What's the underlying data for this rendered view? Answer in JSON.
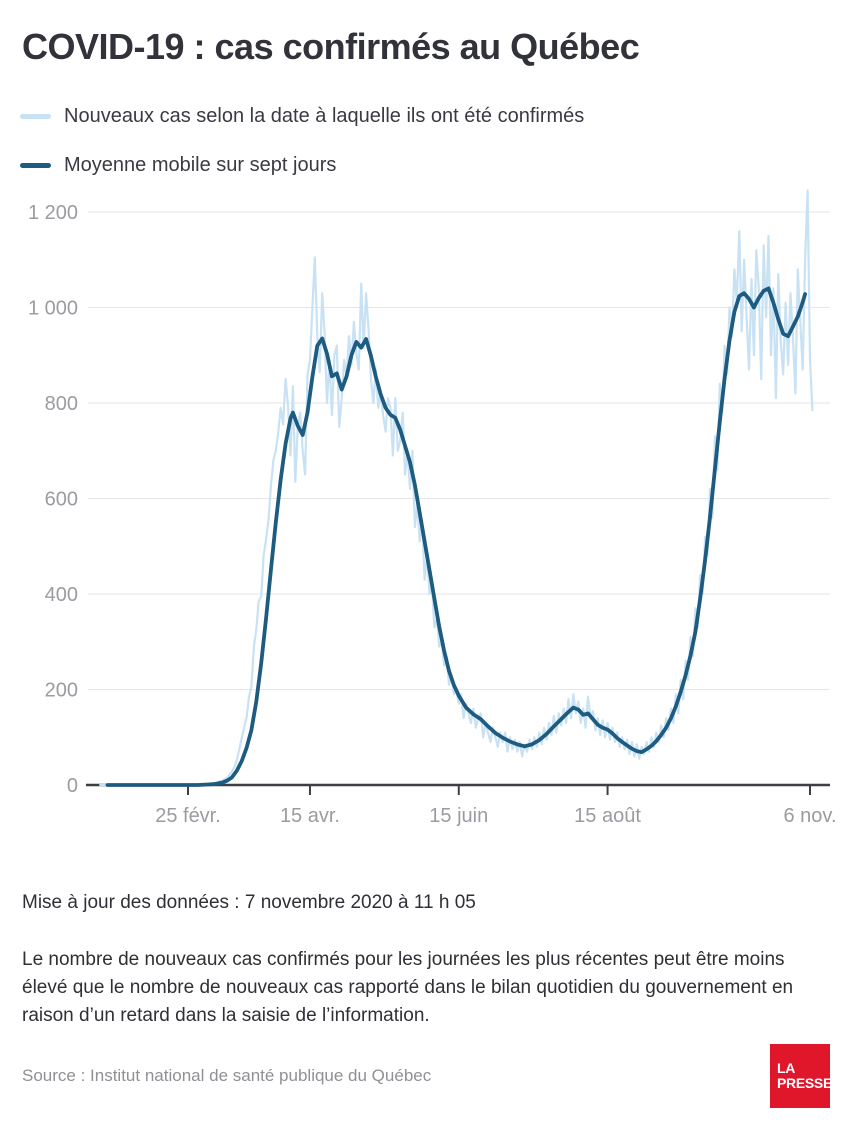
{
  "title": "COVID-19 : cas confirmés au Québec",
  "legend": [
    {
      "label": "Nouveaux cas selon la date à laquelle ils ont été confirmés",
      "color": "#c8e2f4"
    },
    {
      "label": "Moyenne mobile sur sept jours",
      "color": "#1e5b81"
    }
  ],
  "footer": {
    "update_line": "Mise à jour des données : 7 novembre 2020 à 11 h 05",
    "note": "Le nombre de nouveaux cas confirmés pour les journées les plus récentes peut être moins élevé que le nombre de nouveaux cas rapporté dans le bilan quotidien du gouvernement en raison d’un retard dans la saisie de l’information.",
    "source": "Source : Institut national de santé publique du Québec",
    "logo_line1": "LA",
    "logo_line2": "PRESSE",
    "logo_color": "#e0162b"
  },
  "chart_data": {
    "type": "line",
    "title": "COVID-19 : cas confirmés au Québec",
    "xlabel": "",
    "ylabel": "",
    "x_unit": "jours depuis le 20 janvier 2020",
    "x_range_days": [
      0,
      292
    ],
    "x_tick_days": [
      36,
      86,
      147,
      208,
      291
    ],
    "x_tick_labels": [
      "25 févr.",
      "15 avr.",
      "15 juin",
      "15 août",
      "6 nov."
    ],
    "y_ticks": [
      0,
      200,
      400,
      600,
      800,
      1000,
      1200
    ],
    "y_tick_labels": [
      "0",
      "200",
      "400",
      "600",
      "800",
      "1 000",
      "1 200"
    ],
    "ylim": [
      0,
      1255
    ],
    "grid": "horizontal",
    "legend_position": "top-left",
    "colors": {
      "axis": "#3e3f45",
      "grid": "#e6e6e9",
      "tick_labels": "#9b9ba1"
    },
    "series": [
      {
        "name": "Nouveaux cas selon la date à laquelle ils ont été confirmés",
        "color": "#c8e2f4",
        "stroke_width": 2.2,
        "start_day": 0,
        "values": [
          0,
          0,
          0,
          0,
          0,
          0,
          0,
          0,
          0,
          0,
          0,
          0,
          0,
          0,
          0,
          0,
          0,
          0,
          0,
          0,
          0,
          0,
          0,
          0,
          0,
          0,
          0,
          0,
          0,
          0,
          0,
          0,
          0,
          0,
          0,
          0,
          0,
          0,
          1,
          0,
          1,
          0,
          1,
          1,
          2,
          2,
          3,
          4,
          5,
          8,
          9,
          12,
          15,
          22,
          28,
          38,
          52,
          74,
          98,
          120,
          142,
          185,
          205,
          290,
          325,
          385,
          395,
          480,
          515,
          555,
          625,
          680,
          700,
          740,
          790,
          755,
          850,
          795,
          690,
          835,
          635,
          750,
          780,
          700,
          650,
          860,
          890,
          1000,
          1105,
          940,
          865,
          1030,
          945,
          800,
          890,
          775,
          900,
          920,
          750,
          810,
          890,
          855,
          940,
          880,
          970,
          905,
          870,
          1050,
          915,
          1030,
          955,
          850,
          800,
          870,
          790,
          820,
          775,
          740,
          810,
          790,
          690,
          810,
          700,
          720,
          780,
          650,
          700,
          620,
          700,
          540,
          590,
          510,
          555,
          430,
          480,
          400,
          420,
          330,
          350,
          290,
          300,
          250,
          270,
          210,
          230,
          190,
          200,
          170,
          190,
          140,
          170,
          150,
          130,
          160,
          120,
          140,
          150,
          100,
          130,
          110,
          90,
          120,
          100,
          80,
          110,
          90,
          110,
          70,
          100,
          75,
          95,
          70,
          90,
          60,
          85,
          70,
          95,
          75,
          100,
          80,
          110,
          85,
          120,
          95,
          130,
          105,
          145,
          110,
          150,
          125,
          160,
          130,
          180,
          140,
          190,
          150,
          175,
          130,
          160,
          120,
          185,
          140,
          155,
          115,
          140,
          105,
          135,
          100,
          130,
          95,
          120,
          90,
          110,
          80,
          100,
          75,
          95,
          65,
          90,
          60,
          85,
          55,
          80,
          65,
          90,
          70,
          100,
          80,
          110,
          90,
          125,
          100,
          140,
          115,
          160,
          130,
          190,
          150,
          220,
          180,
          260,
          220,
          310,
          270,
          370,
          330,
          440,
          400,
          520,
          480,
          620,
          560,
          730,
          660,
          840,
          780,
          920,
          860,
          1000,
          940,
          1080,
          1010,
          1160,
          950,
          1100,
          980,
          870,
          1060,
          900,
          1120,
          1040,
          850,
          1130,
          980,
          1150,
          900,
          1040,
          810,
          1070,
          930,
          860,
          1010,
          880,
          1030,
          940,
          820,
          1080,
          970,
          870,
          1100,
          1245,
          890,
          785
        ]
      },
      {
        "name": "Moyenne mobile sur sept jours",
        "color": "#1e5b81",
        "stroke_width": 3.8,
        "points": [
          [
            3,
            0
          ],
          [
            40,
            0
          ],
          [
            44,
            1
          ],
          [
            47,
            2
          ],
          [
            50,
            5
          ],
          [
            52,
            9
          ],
          [
            54,
            16
          ],
          [
            56,
            30
          ],
          [
            58,
            50
          ],
          [
            60,
            78
          ],
          [
            62,
            115
          ],
          [
            64,
            175
          ],
          [
            66,
            255
          ],
          [
            68,
            350
          ],
          [
            70,
            450
          ],
          [
            72,
            550
          ],
          [
            74,
            640
          ],
          [
            76,
            715
          ],
          [
            78,
            768
          ],
          [
            79,
            780
          ],
          [
            81,
            752
          ],
          [
            83,
            733
          ],
          [
            85,
            780
          ],
          [
            87,
            855
          ],
          [
            89,
            920
          ],
          [
            91,
            935
          ],
          [
            93,
            903
          ],
          [
            95,
            856
          ],
          [
            97,
            862
          ],
          [
            99,
            828
          ],
          [
            101,
            856
          ],
          [
            103,
            900
          ],
          [
            105,
            928
          ],
          [
            107,
            916
          ],
          [
            109,
            934
          ],
          [
            111,
            898
          ],
          [
            113,
            855
          ],
          [
            115,
            818
          ],
          [
            117,
            790
          ],
          [
            119,
            775
          ],
          [
            121,
            769
          ],
          [
            123,
            744
          ],
          [
            125,
            710
          ],
          [
            127,
            676
          ],
          [
            129,
            628
          ],
          [
            131,
            570
          ],
          [
            133,
            510
          ],
          [
            135,
            450
          ],
          [
            137,
            390
          ],
          [
            139,
            332
          ],
          [
            141,
            281
          ],
          [
            143,
            239
          ],
          [
            145,
            209
          ],
          [
            147,
            187
          ],
          [
            150,
            162
          ],
          [
            153,
            148
          ],
          [
            156,
            138
          ],
          [
            159,
            123
          ],
          [
            162,
            109
          ],
          [
            165,
            99
          ],
          [
            168,
            91
          ],
          [
            171,
            85
          ],
          [
            174,
            81
          ],
          [
            177,
            85
          ],
          [
            180,
            94
          ],
          [
            183,
            107
          ],
          [
            186,
            123
          ],
          [
            189,
            138
          ],
          [
            192,
            153
          ],
          [
            194,
            162
          ],
          [
            196,
            158
          ],
          [
            198,
            147
          ],
          [
            200,
            150
          ],
          [
            202,
            138
          ],
          [
            204,
            126
          ],
          [
            206,
            120
          ],
          [
            208,
            116
          ],
          [
            210,
            108
          ],
          [
            212,
            98
          ],
          [
            214,
            90
          ],
          [
            216,
            83
          ],
          [
            218,
            76
          ],
          [
            220,
            71
          ],
          [
            222,
            69
          ],
          [
            224,
            75
          ],
          [
            226,
            82
          ],
          [
            228,
            92
          ],
          [
            230,
            105
          ],
          [
            232,
            120
          ],
          [
            234,
            140
          ],
          [
            236,
            165
          ],
          [
            238,
            195
          ],
          [
            240,
            230
          ],
          [
            242,
            271
          ],
          [
            244,
            321
          ],
          [
            246,
            391
          ],
          [
            248,
            471
          ],
          [
            250,
            561
          ],
          [
            252,
            661
          ],
          [
            254,
            761
          ],
          [
            256,
            851
          ],
          [
            258,
            931
          ],
          [
            260,
            991
          ],
          [
            262,
            1024
          ],
          [
            264,
            1030
          ],
          [
            266,
            1018
          ],
          [
            268,
            1000
          ],
          [
            270,
            1020
          ],
          [
            272,
            1035
          ],
          [
            274,
            1040
          ],
          [
            276,
            1010
          ],
          [
            278,
            975
          ],
          [
            280,
            945
          ],
          [
            282,
            940
          ],
          [
            284,
            960
          ],
          [
            286,
            981
          ],
          [
            288,
            1011
          ],
          [
            289,
            1028
          ]
        ]
      }
    ]
  }
}
